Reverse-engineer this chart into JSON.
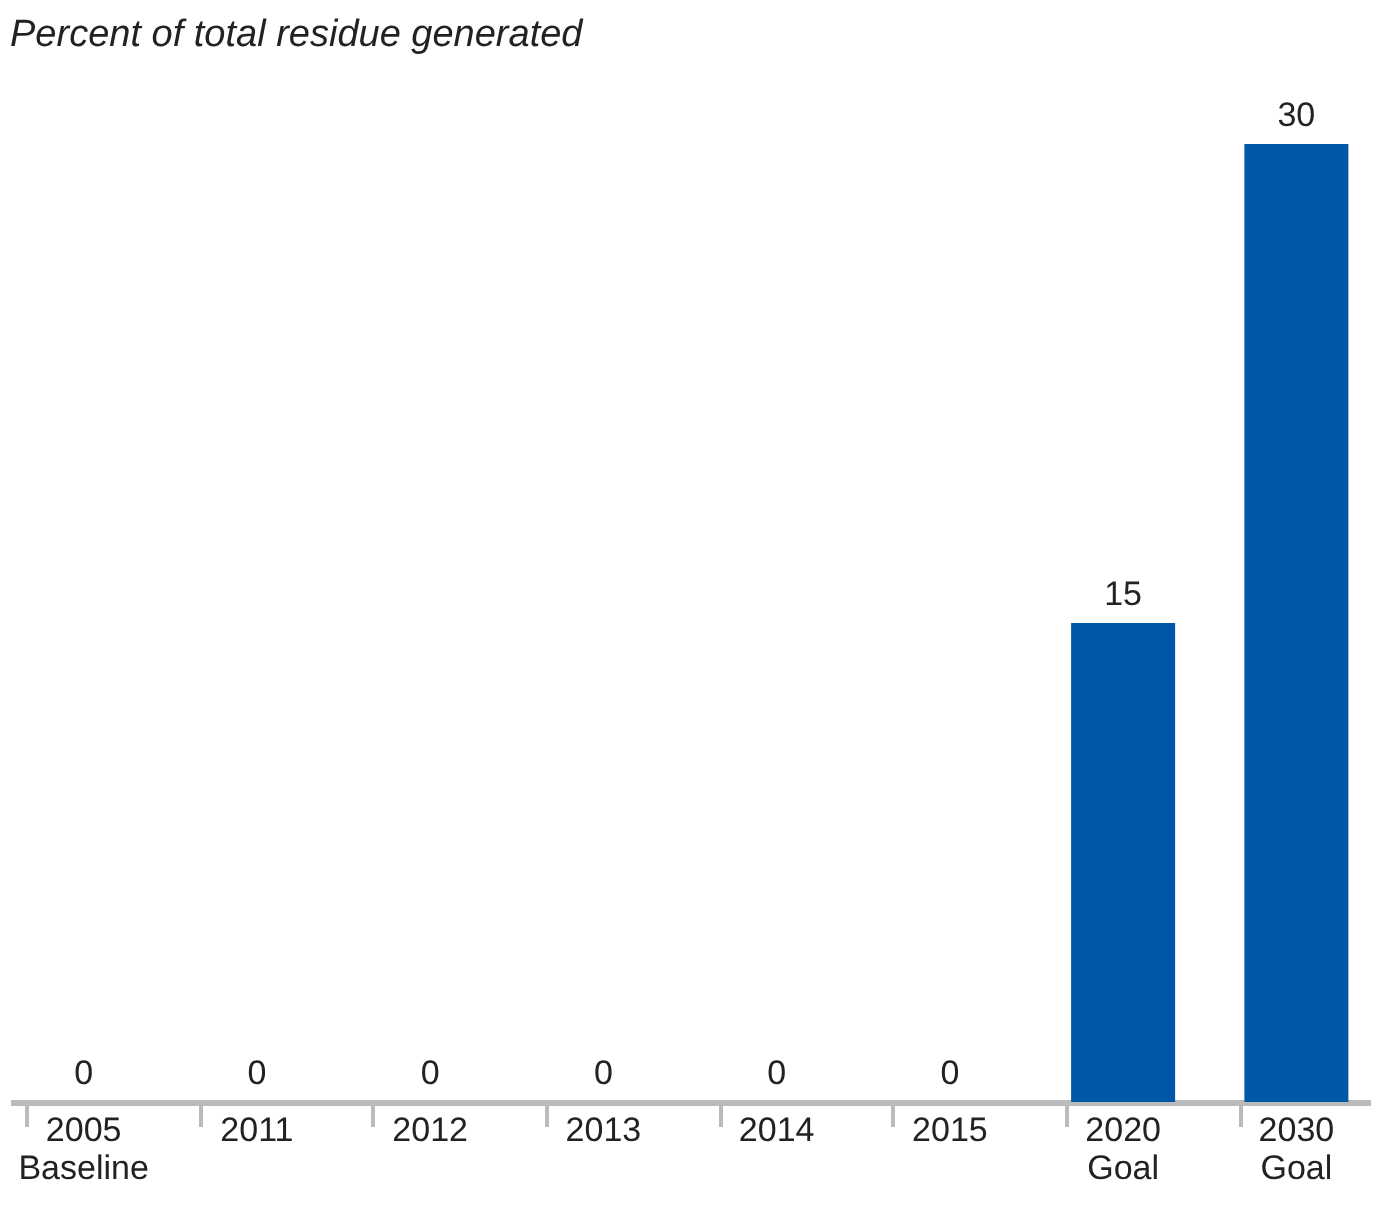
{
  "chart_data": {
    "type": "bar",
    "title": "Percent of total residue generated",
    "categories": [
      "2005\nBaseline",
      "2011",
      "2012",
      "2013",
      "2014",
      "2015",
      "2020\nGoal",
      "2030\nGoal"
    ],
    "values": [
      0,
      0,
      0,
      0,
      0,
      0,
      15,
      30
    ],
    "color": "#0057a8",
    "data_labels": true,
    "grid": false
  }
}
